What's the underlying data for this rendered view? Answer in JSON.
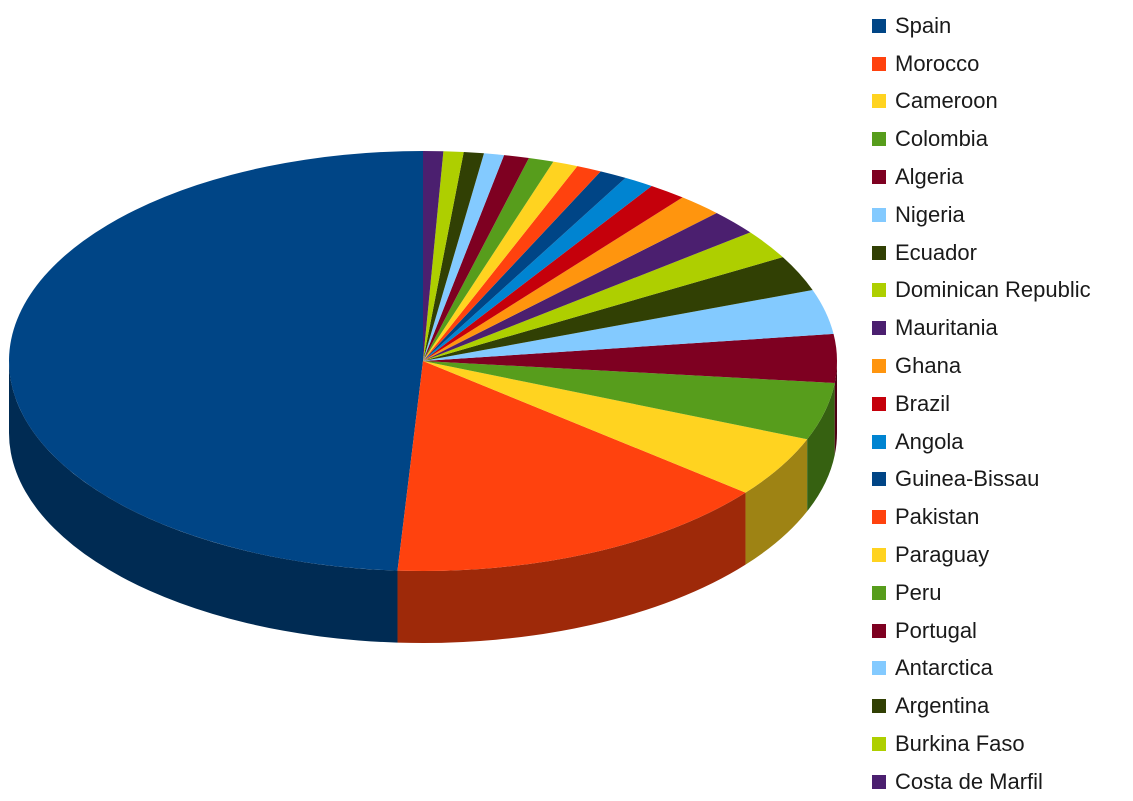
{
  "chart_data": {
    "type": "pie",
    "title": "",
    "legend_position": "right",
    "three_d": true,
    "series": [
      {
        "label": "Spain",
        "value": 50.0,
        "color": "#004586"
      },
      {
        "label": "Morocco",
        "value": 15.5,
        "color": "#ff420e"
      },
      {
        "label": "Cameroon",
        "value": 4.8,
        "color": "#ffd320"
      },
      {
        "label": "Colombia",
        "value": 4.5,
        "color": "#579d1c"
      },
      {
        "label": "Algeria",
        "value": 3.8,
        "color": "#7e0021"
      },
      {
        "label": "Nigeria",
        "value": 3.5,
        "color": "#83caff"
      },
      {
        "label": "Ecuador",
        "value": 2.8,
        "color": "#314004"
      },
      {
        "label": "Dominican Republic",
        "value": 2.3,
        "color": "#aecf00"
      },
      {
        "label": "Mauritania",
        "value": 2.0,
        "color": "#4b1f6f"
      },
      {
        "label": "Ghana",
        "value": 1.8,
        "color": "#ff950e"
      },
      {
        "label": "Brazil",
        "value": 1.5,
        "color": "#c5000b"
      },
      {
        "label": "Angola",
        "value": 1.2,
        "color": "#0084d1"
      },
      {
        "label": "Guinea-Bissau",
        "value": 1.1,
        "color": "#004586"
      },
      {
        "label": "Pakistan",
        "value": 1.0,
        "color": "#ff420e"
      },
      {
        "label": "Paraguay",
        "value": 1.0,
        "color": "#ffd320"
      },
      {
        "label": "Peru",
        "value": 1.0,
        "color": "#579d1c"
      },
      {
        "label": "Portugal",
        "value": 1.0,
        "color": "#7e0021"
      },
      {
        "label": "Antarctica",
        "value": 0.8,
        "color": "#83caff"
      },
      {
        "label": "Argentina",
        "value": 0.8,
        "color": "#314004"
      },
      {
        "label": "Burkina Faso",
        "value": 0.8,
        "color": "#aecf00"
      },
      {
        "label": "Costa de Marfil",
        "value": 0.8,
        "color": "#4b1f6f"
      }
    ]
  }
}
